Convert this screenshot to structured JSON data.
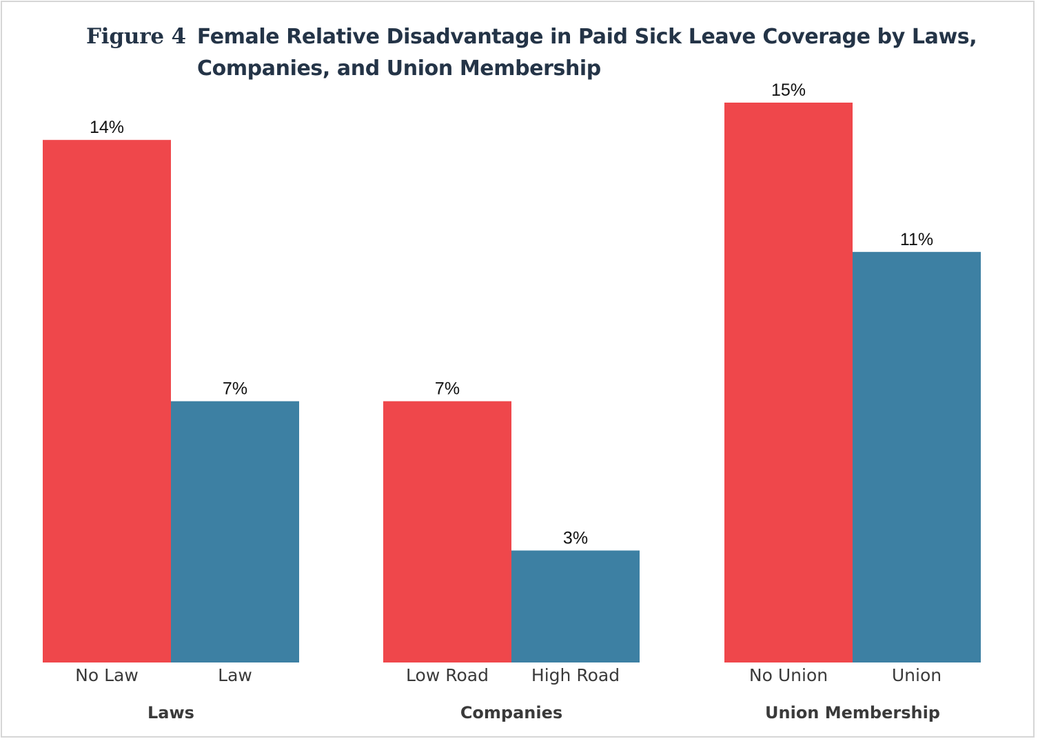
{
  "figure_label": "Figure 4",
  "title_line1": "Female Relative Disadvantage in Paid Sick Leave Coverage by Laws,",
  "title_line2": "Companies, and Union Membership",
  "colors": {
    "red": "#ef474b",
    "blue": "#3d80a3",
    "title": "#243447",
    "axis_text": "#3a3a3a",
    "value_text": "#111111"
  },
  "chart_data": {
    "type": "bar",
    "title": "Female Relative Disadvantage in Paid Sick Leave Coverage by Laws, Companies, and Union Membership",
    "value_unit": "%",
    "ylim": [
      0,
      16
    ],
    "grid": false,
    "legend": "none",
    "groups": [
      {
        "label": "Laws",
        "bars": [
          {
            "category": "No Law",
            "value": 14,
            "label": "14%",
            "color": "#ef474b"
          },
          {
            "category": "Law",
            "value": 7,
            "label": "7%",
            "color": "#3d80a3"
          }
        ]
      },
      {
        "label": "Companies",
        "bars": [
          {
            "category": "Low Road",
            "value": 7,
            "label": "7%",
            "color": "#ef474b"
          },
          {
            "category": "High Road",
            "value": 3,
            "label": "3%",
            "color": "#3d80a3"
          }
        ]
      },
      {
        "label": "Union Membership",
        "bars": [
          {
            "category": "No Union",
            "value": 15,
            "label": "15%",
            "color": "#ef474b"
          },
          {
            "category": "Union",
            "value": 11,
            "label": "11%",
            "color": "#3d80a3"
          }
        ]
      }
    ]
  }
}
